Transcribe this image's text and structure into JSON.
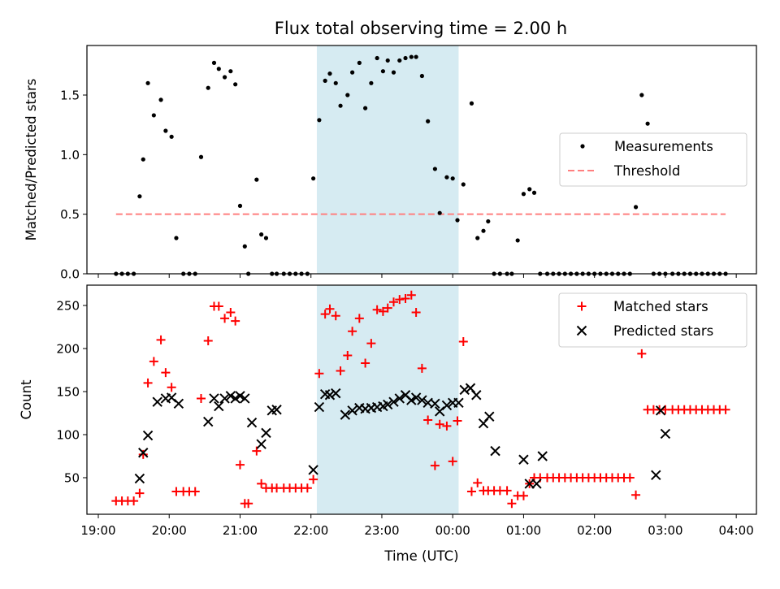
{
  "chart_data": [
    {
      "type": "scatter",
      "title": "Flux total observing time = 2.00 h",
      "xlabel": "",
      "ylabel": "Matched/Predicted stars",
      "xlim": [
        "19:00",
        "04:00"
      ],
      "ylim": [
        0,
        1.9
      ],
      "yticks": [
        "0.0",
        "0.5",
        "1.0",
        "1.5"
      ],
      "shaded_interval": [
        "22:05",
        "00:05"
      ],
      "shade_color": "#add8e6",
      "legend_position": "center-right",
      "series": [
        {
          "name": "Measurements",
          "marker": "dot",
          "color": "#000000",
          "x": [
            "19:15",
            "19:20",
            "19:25",
            "19:30",
            "19:35",
            "19:38",
            "19:42",
            "19:47",
            "19:53",
            "19:57",
            "20:02",
            "20:06",
            "20:12",
            "20:17",
            "20:22",
            "20:27",
            "20:33",
            "20:38",
            "20:42",
            "20:47",
            "20:52",
            "20:56",
            "21:00",
            "21:04",
            "21:07",
            "21:14",
            "21:18",
            "21:22",
            "21:27",
            "21:31",
            "21:37",
            "21:42",
            "21:47",
            "21:52",
            "21:57",
            "22:02",
            "22:07",
            "22:12",
            "22:16",
            "22:21",
            "22:25",
            "22:31",
            "22:35",
            "22:41",
            "22:46",
            "22:51",
            "22:56",
            "23:01",
            "23:05",
            "23:10",
            "23:15",
            "23:20",
            "23:25",
            "23:29",
            "23:34",
            "23:39",
            "23:45",
            "23:49",
            "23:55",
            "00:00",
            "00:04",
            "00:09",
            "00:16",
            "00:21",
            "00:26",
            "00:30",
            "00:35",
            "00:40",
            "00:46",
            "00:50",
            "00:55",
            "01:00",
            "01:05",
            "01:09",
            "01:14",
            "01:20",
            "01:25",
            "01:30",
            "01:35",
            "01:40",
            "01:45",
            "01:50",
            "01:55",
            "02:00",
            "02:05",
            "02:10",
            "02:15",
            "02:20",
            "02:25",
            "02:30",
            "02:35",
            "02:40",
            "02:45",
            "02:50",
            "02:55",
            "03:00",
            "03:06",
            "03:11",
            "03:16",
            "03:21",
            "03:26",
            "03:31",
            "03:36",
            "03:41",
            "03:46",
            "03:51"
          ],
          "y": [
            0,
            0,
            0,
            0,
            0.65,
            0.96,
            1.6,
            1.33,
            1.46,
            1.2,
            1.15,
            0.3,
            0,
            0,
            0,
            0.98,
            1.56,
            1.77,
            1.72,
            1.65,
            1.7,
            1.59,
            0.57,
            0.23,
            0,
            0.79,
            0.33,
            0.3,
            0,
            0,
            0,
            0,
            0,
            0,
            0,
            0.8,
            1.29,
            1.62,
            1.68,
            1.6,
            1.41,
            1.5,
            1.69,
            1.77,
            1.39,
            1.6,
            1.81,
            1.7,
            1.79,
            1.69,
            1.79,
            1.81,
            1.82,
            1.82,
            1.66,
            1.28,
            0.88,
            0.51,
            0.81,
            0.8,
            0.45,
            0.75,
            1.43,
            0.3,
            0.36,
            0.44,
            0,
            0,
            0,
            0,
            0.28,
            0.67,
            0.71,
            0.68,
            0,
            0,
            0,
            0,
            0,
            0,
            0,
            0,
            0,
            0,
            0,
            0,
            0,
            0,
            0,
            0,
            0.56,
            1.5,
            1.26,
            0,
            0,
            0,
            0,
            0,
            0,
            0,
            0,
            0,
            0,
            0,
            0,
            0
          ]
        }
      ],
      "reference_lines": [
        {
          "name": "Threshold",
          "style": "dashed",
          "color": "#ff7f7f",
          "y": 0.5,
          "x": [
            "19:15",
            "03:51"
          ]
        }
      ]
    },
    {
      "type": "scatter",
      "xlabel": "Time (UTC)",
      "ylabel": "Count",
      "xlim": [
        "19:00",
        "04:00"
      ],
      "xticks": [
        "19:00",
        "20:00",
        "21:00",
        "22:00",
        "23:00",
        "00:00",
        "01:00",
        "02:00",
        "03:00",
        "04:00"
      ],
      "ylim": [
        8,
        275
      ],
      "yticks": [
        "50",
        "100",
        "150",
        "200",
        "250"
      ],
      "shaded_interval": [
        "22:05",
        "00:05"
      ],
      "shade_color": "#add8e6",
      "legend_position": "top-right",
      "series": [
        {
          "name": "Matched stars",
          "marker": "plus",
          "color": "#ff0000",
          "x": [
            "19:15",
            "19:20",
            "19:25",
            "19:30",
            "19:35",
            "19:38",
            "19:42",
            "19:47",
            "19:53",
            "19:57",
            "20:02",
            "20:06",
            "20:12",
            "20:17",
            "20:22",
            "20:27",
            "20:33",
            "20:38",
            "20:42",
            "20:47",
            "20:52",
            "20:56",
            "21:00",
            "21:04",
            "21:07",
            "21:14",
            "21:18",
            "21:22",
            "21:27",
            "21:31",
            "21:37",
            "21:42",
            "21:47",
            "21:52",
            "21:57",
            "22:02",
            "22:07",
            "22:12",
            "22:16",
            "22:21",
            "22:25",
            "22:31",
            "22:35",
            "22:41",
            "22:46",
            "22:51",
            "22:56",
            "23:01",
            "23:05",
            "23:10",
            "23:15",
            "23:20",
            "23:25",
            "23:29",
            "23:34",
            "23:39",
            "23:45",
            "23:49",
            "23:55",
            "00:00",
            "00:04",
            "00:09",
            "00:16",
            "00:21",
            "00:26",
            "00:30",
            "00:35",
            "00:40",
            "00:46",
            "00:50",
            "00:55",
            "01:00",
            "01:05",
            "01:09",
            "01:14",
            "01:20",
            "01:25",
            "01:30",
            "01:35",
            "01:40",
            "01:45",
            "01:50",
            "01:55",
            "02:00",
            "02:05",
            "02:10",
            "02:15",
            "02:20",
            "02:25",
            "02:30",
            "02:35",
            "02:40",
            "02:45",
            "02:50",
            "02:55",
            "03:00",
            "03:06",
            "03:11",
            "03:16",
            "03:21",
            "03:26",
            "03:31",
            "03:36",
            "03:41",
            "03:46",
            "03:51"
          ],
          "y": [
            23,
            23,
            23,
            23,
            32,
            77,
            160,
            185,
            210,
            172,
            155,
            34,
            34,
            34,
            34,
            142,
            209,
            249,
            249,
            235,
            242,
            232,
            65,
            20,
            20,
            81,
            43,
            38,
            38,
            38,
            38,
            38,
            38,
            38,
            38,
            48,
            171,
            240,
            246,
            238,
            174,
            192,
            220,
            235,
            183,
            206,
            245,
            243,
            247,
            254,
            257,
            258,
            262,
            242,
            177,
            117,
            64,
            112,
            110,
            69,
            116,
            208,
            34,
            44,
            35,
            35,
            35,
            35,
            35,
            20,
            29,
            29,
            43,
            50,
            50,
            50,
            50,
            50,
            50,
            50,
            50,
            50,
            50,
            50,
            50,
            50,
            50,
            50,
            50,
            50,
            30,
            194,
            129,
            129,
            129,
            129,
            129,
            129,
            129,
            129,
            129,
            129,
            129,
            129,
            129,
            129
          ]
        },
        {
          "name": "Predicted stars",
          "marker": "x",
          "color": "#000000",
          "x": [
            "19:35",
            "19:38",
            "19:42",
            "19:50",
            "19:57",
            "20:02",
            "20:08",
            "20:33",
            "20:38",
            "20:42",
            "20:47",
            "20:52",
            "20:56",
            "21:00",
            "21:04",
            "21:10",
            "21:18",
            "21:22",
            "21:27",
            "21:31",
            "22:02",
            "22:07",
            "22:12",
            "22:16",
            "22:21",
            "22:29",
            "22:35",
            "22:41",
            "22:46",
            "22:51",
            "22:56",
            "23:01",
            "23:05",
            "23:10",
            "23:15",
            "23:20",
            "23:25",
            "23:29",
            "23:34",
            "23:39",
            "23:45",
            "23:49",
            "23:55",
            "00:00",
            "00:05",
            "00:10",
            "00:15",
            "00:20",
            "00:26",
            "00:31",
            "00:36",
            "01:00",
            "01:05",
            "01:11",
            "01:16",
            "02:52",
            "02:56",
            "03:00"
          ],
          "y": [
            49,
            79,
            99,
            138,
            142,
            143,
            136,
            115,
            142,
            133,
            142,
            145,
            142,
            145,
            142,
            114,
            89,
            102,
            128,
            129,
            59,
            132,
            147,
            146,
            148,
            123,
            128,
            131,
            130,
            131,
            132,
            133,
            135,
            138,
            142,
            146,
            140,
            143,
            140,
            137,
            136,
            127,
            134,
            137,
            137,
            152,
            154,
            146,
            113,
            121,
            81,
            71,
            43,
            43,
            75,
            53,
            128,
            101
          ]
        }
      ]
    }
  ]
}
